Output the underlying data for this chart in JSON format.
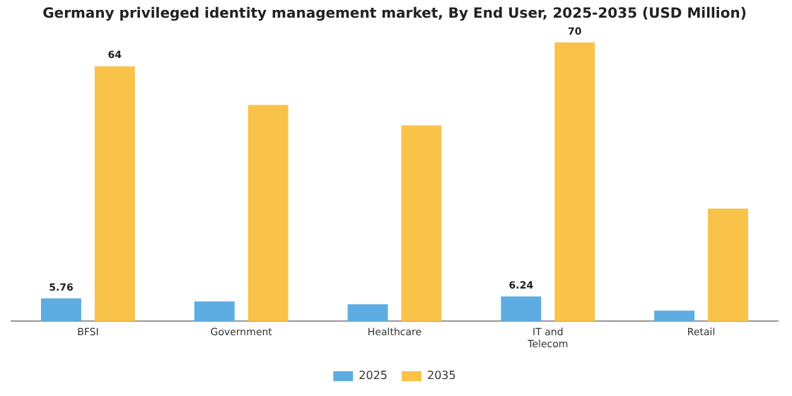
{
  "chart_data": {
    "type": "bar",
    "title": "Germany privileged identity management market, By End User, 2025-2035 (USD Million)",
    "categories": [
      "BFSI",
      "Government",
      "Healthcare",
      "IT and Telecom",
      "Retail"
    ],
    "series": [
      {
        "name": "2025",
        "color": "#5dade2",
        "values": [
          5.76,
          5.0,
          4.3,
          6.24,
          2.7
        ],
        "value_labels": [
          "5.76",
          null,
          null,
          "6.24",
          null
        ]
      },
      {
        "name": "2035",
        "color": "#f9c349",
        "values": [
          64,
          54.3,
          49.2,
          70,
          28.3
        ],
        "value_labels": [
          "64",
          null,
          null,
          "70",
          null
        ]
      }
    ],
    "legend": "bottom",
    "grid": false
  }
}
